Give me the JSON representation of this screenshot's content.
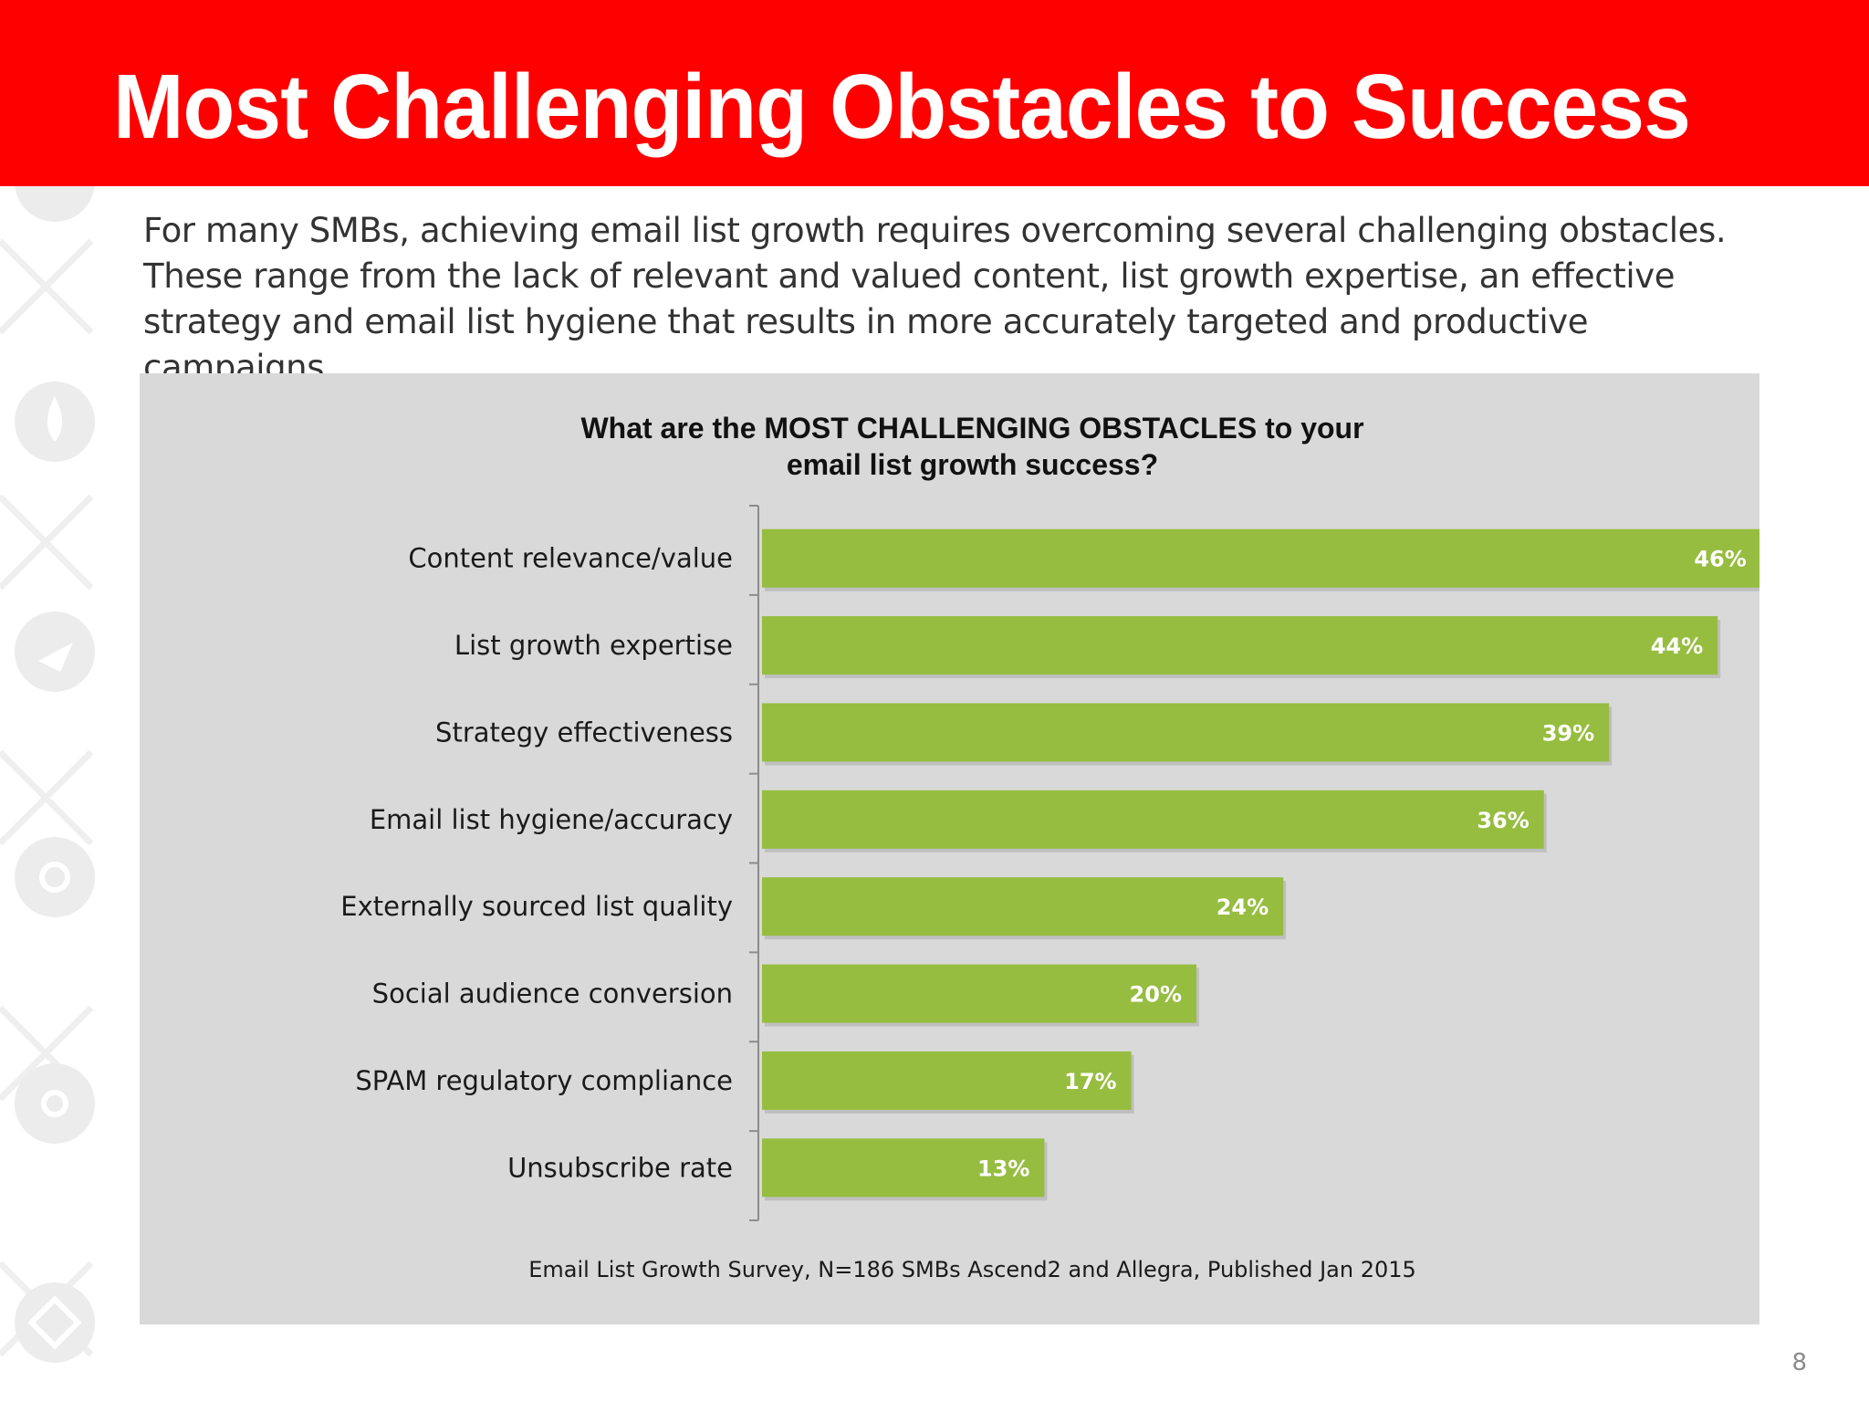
{
  "slide": {
    "title": "Most Challenging Obstacles to Success",
    "intro": "For many SMBs, achieving email list growth requires overcoming several challenging obstacles. These range from the lack of relevant and valued content, list growth expertise, an effective strategy and email list hygiene that results in more accurately targeted and productive campaigns.",
    "page_number": "8",
    "colors": {
      "header": "#ff0000",
      "panel": "#d9d9d9",
      "bar": "#96bd40"
    }
  },
  "chart_data": {
    "type": "bar",
    "orientation": "horizontal",
    "title_lines": [
      "What are the MOST CHALLENGING OBSTACLES to your",
      "email list growth success?"
    ],
    "categories": [
      "Content relevance/value",
      "List growth expertise",
      "Strategy effectiveness",
      "Email list hygiene/accuracy",
      "Externally sourced list quality",
      "Social audience conversion",
      "SPAM regulatory compliance",
      "Unsubscribe rate"
    ],
    "values": [
      46,
      44,
      39,
      36,
      24,
      20,
      17,
      13
    ],
    "value_labels": [
      "46%",
      "44%",
      "39%",
      "36%",
      "24%",
      "20%",
      "17%",
      "13%"
    ],
    "unit": "%",
    "xlim": [
      0,
      50
    ],
    "grid": false,
    "legend": "none",
    "source": "Email List Growth Survey, N=186 SMBs Ascend2 and Allegra, Published Jan 2015"
  }
}
